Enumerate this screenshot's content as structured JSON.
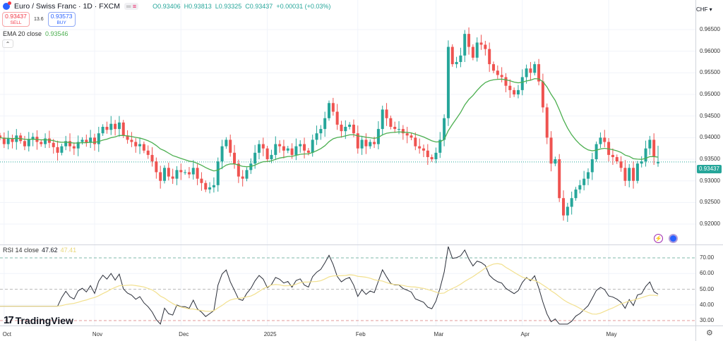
{
  "header": {
    "title": "Euro / Swiss Franc · 1D · FXCM",
    "O": "0.93406",
    "H": "0.93813",
    "L": "0.93325",
    "C": "0.93437",
    "change": "+0.00031 (+0.03%)"
  },
  "trade": {
    "sell_price": "0.93437",
    "sell_label": "SELL",
    "spread": "13.6",
    "buy_price": "0.93573",
    "buy_label": "BUY"
  },
  "ema": {
    "label": "EMA 20 close",
    "value": "0.93546"
  },
  "rsi": {
    "label": "RSI 14 close",
    "value": "47.62",
    "ma_value": "47.41",
    "ticks": [
      "70.00",
      "60.00",
      "50.00",
      "40.00",
      "30.00"
    ]
  },
  "currency": "CHF ▾",
  "last_price_label": "0.93437",
  "logo_text": "TradingView",
  "colors": {
    "up": "#26a69a",
    "down": "#ef5350",
    "ema": "#4caf50",
    "rsi": "#2a2e39",
    "rsi_ma": "#f2e08e"
  },
  "chart_data": {
    "type": "candlestick",
    "title": "Euro / Swiss Franc · 1D · FXCM",
    "ylim": [
      0.9155,
      0.9675
    ],
    "yticks": [
      "0.96500",
      "0.96000",
      "0.95500",
      "0.95000",
      "0.94500",
      "0.94000",
      "0.93500",
      "0.93000",
      "0.92500",
      "0.92000"
    ],
    "ytick_values": [
      0.965,
      0.96,
      0.955,
      0.95,
      0.945,
      0.94,
      0.935,
      0.93,
      0.925,
      0.92
    ],
    "xticks": [
      {
        "label": "Oct",
        "bar": 1
      },
      {
        "label": "Nov",
        "bar": 23
      },
      {
        "label": "Dec",
        "bar": 44
      },
      {
        "label": "2025",
        "bar": 65
      },
      {
        "label": "Feb",
        "bar": 87
      },
      {
        "label": "Mar",
        "bar": 106
      },
      {
        "label": "Apr",
        "bar": 127
      },
      {
        "label": "May",
        "bar": 148
      }
    ],
    "close": [
      0.94,
      0.9385,
      0.9398,
      0.939,
      0.9405,
      0.9392,
      0.938,
      0.9395,
      0.9402,
      0.939,
      0.9385,
      0.9398,
      0.9388,
      0.9378,
      0.9365,
      0.938,
      0.9392,
      0.938,
      0.9375,
      0.939,
      0.9395,
      0.9388,
      0.94,
      0.9385,
      0.941,
      0.9425,
      0.9418,
      0.9432,
      0.942,
      0.9435,
      0.9405,
      0.9395,
      0.939,
      0.938,
      0.9385,
      0.937,
      0.936,
      0.9345,
      0.932,
      0.93,
      0.933,
      0.931,
      0.9305,
      0.9325,
      0.932,
      0.932,
      0.9315,
      0.933,
      0.9305,
      0.9295,
      0.928,
      0.9285,
      0.929,
      0.9345,
      0.938,
      0.9395,
      0.9365,
      0.934,
      0.931,
      0.9305,
      0.9325,
      0.934,
      0.9365,
      0.9385,
      0.9375,
      0.935,
      0.936,
      0.9385,
      0.938,
      0.937,
      0.9375,
      0.936,
      0.938,
      0.9385,
      0.937,
      0.9365,
      0.9395,
      0.941,
      0.942,
      0.9445,
      0.948,
      0.946,
      0.943,
      0.9415,
      0.9425,
      0.943,
      0.941,
      0.9375,
      0.9395,
      0.938,
      0.939,
      0.9385,
      0.942,
      0.9465,
      0.9445,
      0.9425,
      0.942,
      0.942,
      0.941,
      0.9405,
      0.94,
      0.938,
      0.9375,
      0.937,
      0.9355,
      0.935,
      0.9365,
      0.9395,
      0.9445,
      0.961,
      0.957,
      0.9575,
      0.959,
      0.964,
      0.961,
      0.9585,
      0.962,
      0.9615,
      0.9605,
      0.957,
      0.9555,
      0.9545,
      0.954,
      0.952,
      0.951,
      0.95,
      0.951,
      0.954,
      0.956,
      0.955,
      0.957,
      0.953,
      0.947,
      0.94,
      0.934,
      0.935,
      0.926,
      0.922,
      0.924,
      0.926,
      0.928,
      0.929,
      0.9305,
      0.932,
      0.935,
      0.9385,
      0.94,
      0.939,
      0.936,
      0.9355,
      0.9345,
      0.933,
      0.93,
      0.933,
      0.93,
      0.934,
      0.9345,
      0.9375,
      0.9395,
      0.9355,
      0.93437
    ],
    "last_open": 0.93406,
    "last_high": 0.93813,
    "last_low": 0.93325
  }
}
